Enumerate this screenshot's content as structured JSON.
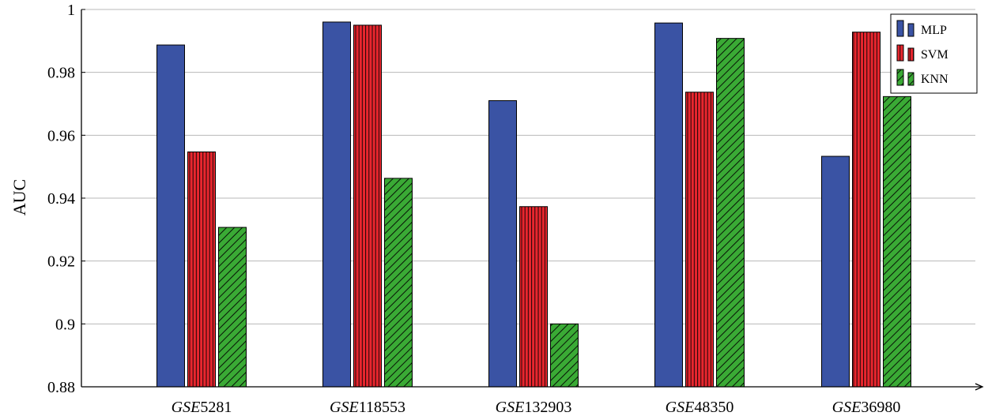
{
  "chart_data": {
    "type": "bar",
    "title": "",
    "xlabel": "",
    "ylabel": "AUC",
    "ylim": [
      0.88,
      1.0
    ],
    "yticks": [
      0.88,
      0.9,
      0.92,
      0.94,
      0.96,
      0.98,
      1
    ],
    "ytick_labels": [
      "0.88",
      "0.9",
      "0.92",
      "0.94",
      "0.96",
      "0.98",
      "1"
    ],
    "categories": [
      {
        "prefix": "GSE",
        "number": "5281"
      },
      {
        "prefix": "GSE",
        "number": "118553"
      },
      {
        "prefix": "GSE",
        "number": "132903"
      },
      {
        "prefix": "GSE",
        "number": "48350"
      },
      {
        "prefix": "GSE",
        "number": "36980"
      }
    ],
    "series": [
      {
        "name": "MLP",
        "color": "#3a53a4",
        "pattern": "solid",
        "values": [
          0.9887,
          0.996,
          0.971,
          0.9957,
          0.9533
        ]
      },
      {
        "name": "SVM",
        "color": "#e8262e",
        "pattern": "vertical-lines",
        "values": [
          0.9547,
          0.995,
          0.9373,
          0.9737,
          0.9928
        ]
      },
      {
        "name": "KNN",
        "color": "#3aaa35",
        "pattern": "diagonal-lines",
        "values": [
          0.9307,
          0.9463,
          0.9,
          0.9908,
          0.9723
        ]
      }
    ],
    "grid": true,
    "legend_position": "top-right"
  }
}
